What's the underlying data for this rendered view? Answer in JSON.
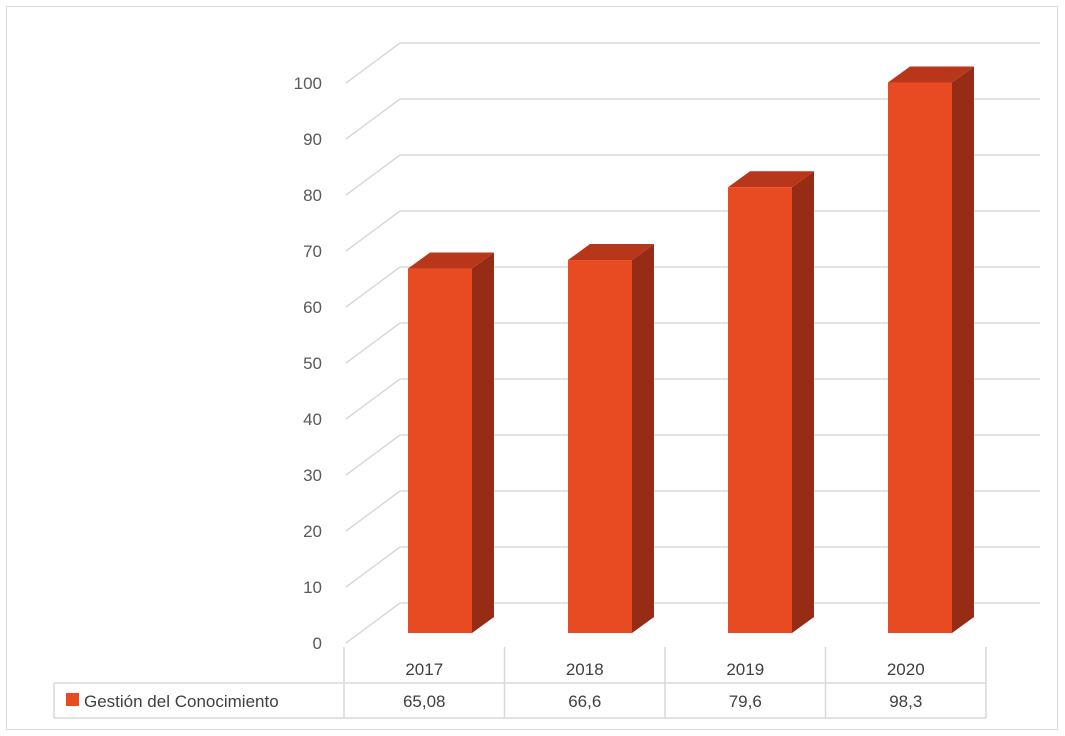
{
  "chart_data": {
    "type": "bar",
    "three_d": true,
    "categories": [
      "2017",
      "2018",
      "2019",
      "2020"
    ],
    "series": [
      {
        "name": "Gestión del Conocimiento",
        "values": [
          65.08,
          66.6,
          79.6,
          98.3
        ],
        "value_labels": [
          "65,08",
          "66,6",
          "79,6",
          "98,3"
        ]
      }
    ],
    "ylim": [
      0,
      100
    ],
    "yticks": [
      0,
      10,
      20,
      30,
      40,
      50,
      60,
      70,
      80,
      90,
      100
    ],
    "grid": true,
    "legend": "data-table-bottom",
    "colors": {
      "front": "#e84a22",
      "side": "#972c16",
      "top": "#b8361a",
      "grid": "#d9d9d9",
      "text": "#595959"
    }
  }
}
